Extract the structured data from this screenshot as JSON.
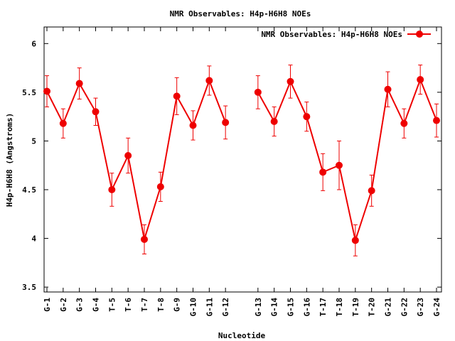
{
  "chart_data": {
    "type": "line",
    "title": "NMR Observables: H4p-H6H8 NOEs",
    "xlabel": "Nucleotide",
    "ylabel": "H4p-H6H8 (Angstroms)",
    "ylim": [
      3.45,
      6.17
    ],
    "yticks": [
      "3.5",
      "4",
      "4.5",
      "5",
      "5.5",
      "6"
    ],
    "legend_position": "top-right",
    "grid": false,
    "series": [
      {
        "name": "NMR Observables: H4p-H6H8 NOEs",
        "color": "#ee0000",
        "marker": "circle",
        "error_bars": true,
        "segments": [
          {
            "categories": [
              "G-1",
              "G-2",
              "G-3",
              "G-4",
              "T-5",
              "T-6",
              "T-7",
              "T-8",
              "G-9",
              "G-10",
              "G-11",
              "G-12"
            ],
            "values": [
              5.51,
              5.18,
              5.59,
              5.3,
              4.5,
              4.85,
              3.99,
              4.53,
              5.46,
              5.16,
              5.62,
              5.19
            ],
            "errors": [
              0.16,
              0.15,
              0.16,
              0.14,
              0.17,
              0.18,
              0.15,
              0.15,
              0.19,
              0.15,
              0.15,
              0.17
            ]
          },
          {
            "categories": [
              "G-13",
              "G-14",
              "G-15",
              "G-16",
              "T-17",
              "T-18",
              "T-19",
              "T-20",
              "G-21",
              "G-22",
              "G-23",
              "G-24"
            ],
            "values": [
              5.5,
              5.2,
              5.61,
              5.25,
              4.68,
              4.75,
              3.98,
              4.49,
              5.53,
              5.18,
              5.63,
              5.21
            ],
            "errors": [
              0.17,
              0.15,
              0.17,
              0.15,
              0.19,
              0.25,
              0.16,
              0.16,
              0.18,
              0.15,
              0.15,
              0.17
            ]
          }
        ]
      }
    ]
  }
}
